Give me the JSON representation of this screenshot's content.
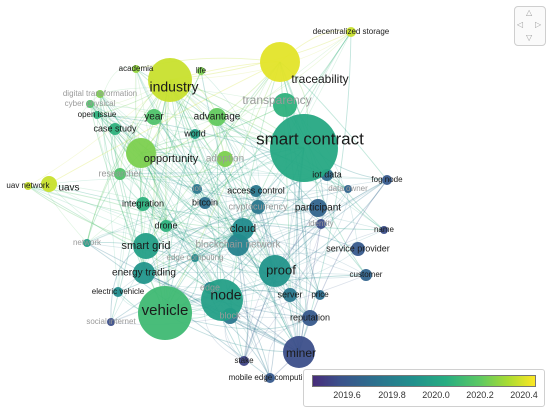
{
  "nodes": [
    {
      "label": "smart contract",
      "size": 34,
      "year": 2020.05,
      "labelSize": 17
    },
    {
      "label": "industry",
      "size": 22,
      "year": 2020.45,
      "labelSize": 14
    },
    {
      "label": "traceability",
      "size": 20,
      "year": 2020.5,
      "labelSize": 12
    },
    {
      "label": "vehicle",
      "size": 27,
      "year": 2020.15,
      "labelSize": 15
    },
    {
      "label": "node",
      "size": 21,
      "year": 2020.0,
      "labelSize": 14
    },
    {
      "label": "miner",
      "size": 16,
      "year": 2019.6,
      "labelSize": 12
    },
    {
      "label": "proof",
      "size": 16,
      "year": 2019.95,
      "labelSize": 13
    },
    {
      "label": "opportunity",
      "size": 15,
      "year": 2020.3,
      "labelSize": 11
    },
    {
      "label": "smart grid",
      "size": 13,
      "year": 2020.0,
      "labelSize": 11
    },
    {
      "label": "blockchain network",
      "size": 11,
      "year": 2019.85,
      "labelSize": 10,
      "faint": true
    },
    {
      "label": "cloud",
      "size": 11,
      "year": 2019.9,
      "labelSize": 11
    },
    {
      "label": "energy trading",
      "size": 11,
      "year": 2019.95,
      "labelSize": 10
    },
    {
      "label": "transparency",
      "size": 12,
      "year": 2020.1,
      "labelSize": 12,
      "faint": true
    },
    {
      "label": "advantage",
      "size": 9,
      "year": 2020.25,
      "labelSize": 10
    },
    {
      "label": "uavs",
      "size": 8,
      "year": 2020.45,
      "labelSize": 10
    },
    {
      "label": "year",
      "size": 8,
      "year": 2020.2,
      "labelSize": 10
    },
    {
      "label": "case study",
      "size": 6,
      "year": 2020.1,
      "labelSize": 9
    },
    {
      "label": "world",
      "size": 5,
      "year": 2020.0,
      "labelSize": 9
    },
    {
      "label": "researcher",
      "size": 6,
      "year": 2020.2,
      "labelSize": 9,
      "faint": true
    },
    {
      "label": "adoption",
      "size": 8,
      "year": 2020.3,
      "labelSize": 10,
      "faint": true
    },
    {
      "label": "access control",
      "size": 6,
      "year": 2019.8,
      "labelSize": 9
    },
    {
      "label": "iot data",
      "size": 6,
      "year": 2019.75,
      "labelSize": 9
    },
    {
      "label": "fog node",
      "size": 5,
      "year": 2019.65,
      "labelSize": 8
    },
    {
      "label": "iot",
      "size": 5,
      "year": 2019.8,
      "labelSize": 8,
      "faint": true
    },
    {
      "label": "bitcoin",
      "size": 6,
      "year": 2019.75,
      "labelSize": 9
    },
    {
      "label": "cryptocurrency",
      "size": 7,
      "year": 2019.8,
      "labelSize": 9,
      "faint": true
    },
    {
      "label": "data owner",
      "size": 4,
      "year": 2019.7,
      "labelSize": 8,
      "faint": true
    },
    {
      "label": "participant",
      "size": 9,
      "year": 2019.7,
      "labelSize": 10
    },
    {
      "label": "identity",
      "size": 5,
      "year": 2019.6,
      "labelSize": 8,
      "faint": true
    },
    {
      "label": "integration",
      "size": 7,
      "year": 2020.1,
      "labelSize": 9
    },
    {
      "label": "drone",
      "size": 6,
      "year": 2020.1,
      "labelSize": 9
    },
    {
      "label": "name",
      "size": 4,
      "year": 2019.6,
      "labelSize": 8
    },
    {
      "label": "service provider",
      "size": 7,
      "year": 2019.65,
      "labelSize": 9
    },
    {
      "label": "customer",
      "size": 6,
      "year": 2019.7,
      "labelSize": 8
    },
    {
      "label": "server",
      "size": 7,
      "year": 2019.8,
      "labelSize": 9
    },
    {
      "label": "price",
      "size": 5,
      "year": 2019.75,
      "labelSize": 8
    },
    {
      "label": "reputation",
      "size": 8,
      "year": 2019.65,
      "labelSize": 9
    },
    {
      "label": "electric vehicle",
      "size": 5,
      "year": 2019.9,
      "labelSize": 8
    },
    {
      "label": "edge",
      "size": 6,
      "year": 2019.85,
      "labelSize": 9,
      "faint": true
    },
    {
      "label": "block",
      "size": 8,
      "year": 2019.8,
      "labelSize": 9,
      "faint": true
    },
    {
      "label": "social internet",
      "size": 4,
      "year": 2019.6,
      "labelSize": 8,
      "faint": true
    },
    {
      "label": "stake",
      "size": 5,
      "year": 2019.55,
      "labelSize": 8
    },
    {
      "label": "mobile edge computing",
      "size": 5,
      "year": 2019.65,
      "labelSize": 8
    },
    {
      "label": "uav network",
      "size": 4,
      "year": 2020.45,
      "labelSize": 8
    },
    {
      "label": "decentralized storage",
      "size": 5,
      "year": 2020.45,
      "labelSize": 8
    },
    {
      "label": "academia",
      "size": 4,
      "year": 2020.35,
      "labelSize": 8
    },
    {
      "label": "life",
      "size": 4,
      "year": 2020.3,
      "labelSize": 8
    },
    {
      "label": "digital transformation",
      "size": 4,
      "year": 2020.3,
      "labelSize": 8,
      "faint": true
    },
    {
      "label": "cyber physical",
      "size": 4,
      "year": 2020.2,
      "labelSize": 8,
      "faint": true
    },
    {
      "label": "open issue",
      "size": 4,
      "year": 2020.1,
      "labelSize": 8
    },
    {
      "label": "network",
      "size": 4,
      "year": 2020.0,
      "labelSize": 8,
      "faint": true
    },
    {
      "label": "edge computing",
      "size": 4,
      "year": 2019.9,
      "labelSize": 8,
      "faint": true
    }
  ],
  "legend": {
    "ticks": [
      "2019.6",
      "2019.8",
      "2020.0",
      "2020.2",
      "2020.4"
    ],
    "range": [
      2019.45,
      2020.55
    ],
    "colors": [
      "#472c7a",
      "#3b518b",
      "#2c718e",
      "#21908d",
      "#27ad81",
      "#5cc863",
      "#aadc32",
      "#fde725"
    ]
  },
  "nav": {
    "up": "△",
    "down": "▽",
    "left": "◁",
    "right": "▷"
  }
}
